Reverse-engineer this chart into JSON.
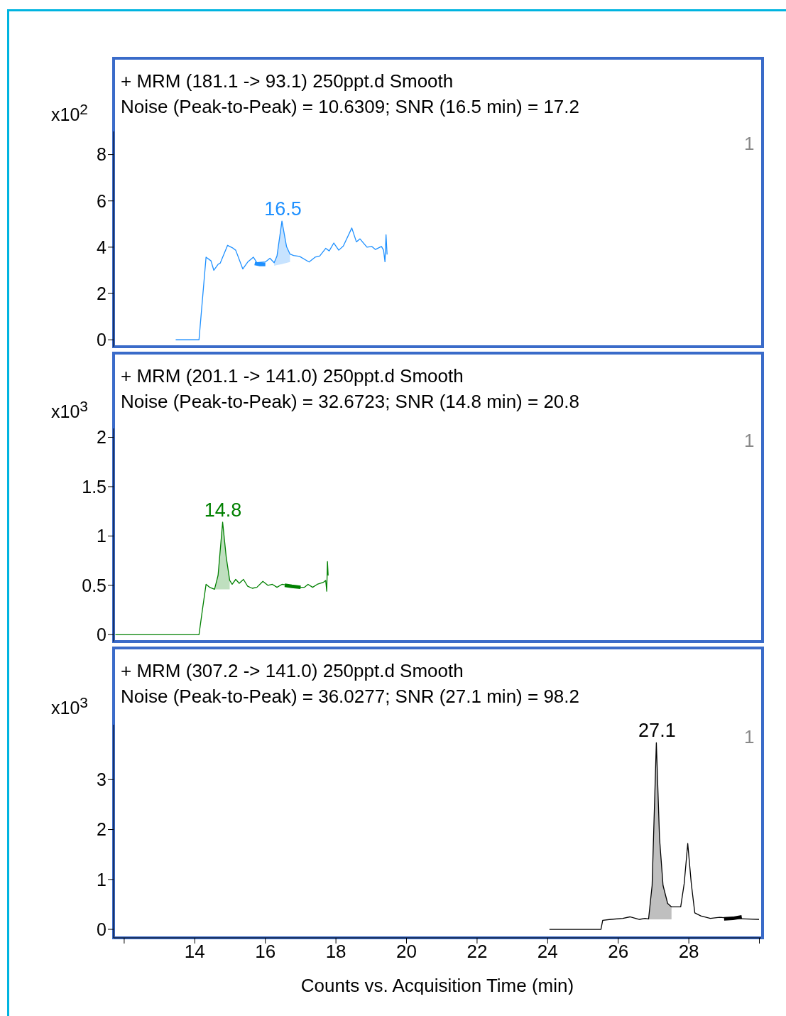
{
  "chart_data": [
    {
      "type": "line",
      "title": "+ MRM (181.1 -> 93.1) 250ppt.d  Smooth",
      "subtitle": "Noise (Peak-to-Peak) = 10.6309; SNR (16.5 min) = 17.2",
      "ylabel": "x10$^{2}$",
      "xlim": [
        11.7,
        30.05
      ],
      "ylim": [
        -0.3,
        9
      ],
      "yticks": [
        0,
        2,
        4,
        6,
        8
      ],
      "tick_labels": "y",
      "annotations": [
        {
          "text": "16.5",
          "x": 16.5,
          "y": 5.13
        },
        "1"
      ],
      "series": [
        {
          "color": "#1e90ff",
          "x": [
            13.46,
            14.12,
            14.32,
            14.46,
            14.54,
            14.66,
            14.72,
            14.93,
            15.06,
            15.16,
            15.36,
            15.5,
            15.66,
            15.76,
            16.0,
            16.13,
            16.25,
            16.33,
            16.47,
            16.6,
            16.7,
            16.8,
            16.97,
            17.24,
            17.41,
            17.54,
            17.71,
            17.81,
            17.94,
            18.08,
            18.21,
            18.45,
            18.58,
            18.68,
            18.88,
            19.02,
            19.12,
            19.29,
            19.35,
            19.39,
            19.42,
            19.45
          ],
          "values": [
            0,
            0,
            3.57,
            3.41,
            3.0,
            3.26,
            3.31,
            4.08,
            3.98,
            3.87,
            3.06,
            3.36,
            3.57,
            3.33,
            3.36,
            3.52,
            3.33,
            3.62,
            5.13,
            4.03,
            3.7,
            3.64,
            3.6,
            3.36,
            3.57,
            3.62,
            3.95,
            3.84,
            4.18,
            3.87,
            4.05,
            4.83,
            4.23,
            4.36,
            4.0,
            4.03,
            3.9,
            4.03,
            3.87,
            3.37,
            4.54,
            3.68
          ],
          "lower": [
            null,
            null,
            null,
            null,
            null,
            null,
            null,
            null,
            null,
            null,
            null,
            null,
            null,
            null,
            null,
            null,
            3.2,
            3.23,
            3.27,
            3.32,
            3.36,
            null,
            null,
            null,
            null,
            null,
            null,
            null,
            null,
            null,
            null,
            null,
            null,
            null,
            null,
            null,
            null,
            null,
            null,
            null,
            null,
            null
          ],
          "upper": [
            null,
            null,
            null,
            null,
            null,
            null,
            null,
            null,
            null,
            null,
            null,
            null,
            null,
            null,
            null,
            null,
            3.33,
            3.62,
            5.13,
            4.03,
            3.7,
            null,
            null,
            null,
            null,
            null,
            null,
            null,
            null,
            null,
            null,
            null,
            null,
            null,
            null,
            null,
            null,
            null,
            null,
            null,
            null,
            null
          ]
        },
        {
          "color": "#1e90ff",
          "x": [
            15.7,
            15.85,
            16.0
          ],
          "values": [
            3.3,
            3.25,
            3.25
          ]
        }
      ]
    },
    {
      "type": "line",
      "title": "+ MRM (201.1 -> 141.0) 250ppt.d  Smooth",
      "subtitle": "Noise (Peak-to-Peak) = 32.6723; SNR (14.8 min) = 20.8",
      "ylabel": "x10$^{3}$",
      "xlim": [
        11.7,
        30.05
      ],
      "ylim": [
        -0.07,
        2.09
      ],
      "yticks": [
        0,
        0.5,
        1,
        1.5,
        2
      ],
      "tick_labels": "y",
      "annotations": [
        {
          "text": "14.8",
          "x": 14.8,
          "y": 1.14
        },
        "1"
      ],
      "series": [
        {
          "color": "#008000",
          "x": [
            11.75,
            14.12,
            14.22,
            14.32,
            14.42,
            14.56,
            14.66,
            14.79,
            14.89,
            14.99,
            15.06,
            15.16,
            15.26,
            15.38,
            15.5,
            15.63,
            15.76,
            15.93,
            16.07,
            16.2,
            16.33,
            16.47,
            17.0,
            17.11,
            17.21,
            17.34,
            17.47,
            17.64,
            17.71,
            17.74,
            17.76,
            17.78
          ],
          "values": [
            0,
            0,
            0.26,
            0.51,
            0.48,
            0.46,
            0.6,
            1.14,
            0.79,
            0.55,
            0.51,
            0.56,
            0.52,
            0.56,
            0.49,
            0.47,
            0.48,
            0.54,
            0.5,
            0.51,
            0.48,
            0.51,
            0.48,
            0.48,
            0.51,
            0.48,
            0.51,
            0.53,
            0.55,
            0.44,
            0.74,
            0.6
          ],
          "lower": [
            null,
            null,
            null,
            null,
            null,
            0.46,
            0.46,
            0.46,
            0.46,
            0.46,
            null,
            null,
            null,
            null,
            null,
            null,
            null,
            null,
            null,
            null,
            null,
            null,
            null,
            null,
            null,
            null,
            null,
            null,
            null,
            null,
            null,
            null
          ],
          "upper": [
            null,
            null,
            null,
            null,
            null,
            0.46,
            0.6,
            1.14,
            0.79,
            0.55,
            null,
            null,
            null,
            null,
            null,
            null,
            null,
            null,
            null,
            null,
            null,
            null,
            null,
            null,
            null,
            null,
            null,
            null,
            null,
            null,
            null,
            null
          ]
        },
        {
          "color": "#008000",
          "x": [
            16.55,
            16.75,
            17.0
          ],
          "values": [
            0.5,
            0.49,
            0.48
          ]
        }
      ]
    },
    {
      "type": "line",
      "title": "+ MRM (307.2 -> 141.0) 250ppt.d  Smooth",
      "subtitle": "Noise (Peak-to-Peak) = 36.0277; SNR (27.1 min) = 98.2",
      "ylabel": "x10$^{3}$",
      "xlabel": "Counts vs. Acquisition Time (min)",
      "xlim": [
        11.7,
        30.05
      ],
      "xticks": [
        {
          "value": 12,
          "label": null
        },
        14,
        16,
        18,
        20,
        22,
        24,
        26,
        28,
        {
          "value": 30,
          "label": null
        }
      ],
      "ylim": [
        -0.17,
        4.1
      ],
      "yticks": [
        0,
        1,
        2,
        3
      ],
      "annotations": [
        {
          "text": "27.1",
          "x": 27.1,
          "y": 3.74
        },
        "1"
      ],
      "series": [
        {
          "color": "#000000",
          "x": [
            24.05,
            25.51,
            25.56,
            25.79,
            26.13,
            26.33,
            26.6,
            26.76,
            26.86,
            26.96,
            27.08,
            27.17,
            27.27,
            27.4,
            27.51,
            27.63,
            27.77,
            27.87,
            27.97,
            28.07,
            28.17,
            28.34,
            28.61,
            28.87,
            29.61,
            29.99
          ],
          "values": [
            0,
            0,
            0.18,
            0.2,
            0.22,
            0.25,
            0.2,
            0.22,
            0.21,
            0.88,
            3.74,
            1.83,
            0.88,
            0.52,
            0.45,
            0.45,
            0.45,
            0.92,
            1.72,
            0.92,
            0.33,
            0.27,
            0.22,
            0.24,
            0.21,
            0.2
          ],
          "lower": [
            null,
            null,
            null,
            null,
            null,
            null,
            null,
            null,
            0.2,
            0.2,
            0.2,
            0.2,
            0.2,
            0.2,
            0.2,
            null,
            null,
            null,
            null,
            null,
            null,
            null,
            null,
            null,
            null,
            null
          ],
          "upper": [
            null,
            null,
            null,
            null,
            null,
            null,
            null,
            null,
            0.21,
            0.88,
            3.74,
            1.83,
            0.88,
            0.52,
            0.45,
            null,
            null,
            null,
            null,
            null,
            null,
            null,
            null,
            null,
            null,
            null
          ]
        },
        {
          "color": "#000000",
          "x": [
            29.0,
            29.25,
            29.5
          ],
          "values": [
            0.21,
            0.22,
            0.25
          ]
        }
      ]
    }
  ]
}
